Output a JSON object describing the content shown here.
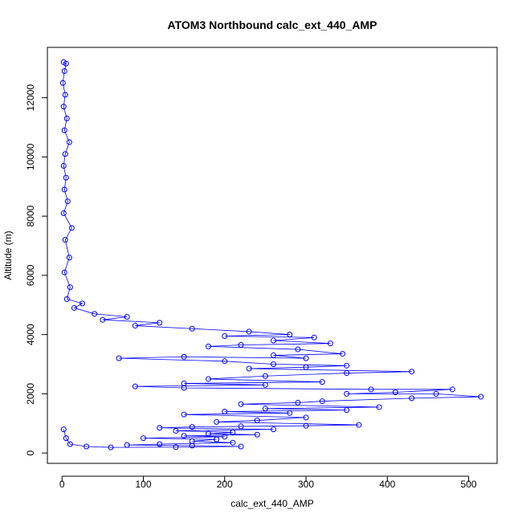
{
  "chart_data": {
    "type": "scatter",
    "title": "ATOM3 Northbound calc_ext_440_AMP",
    "xlabel": "calc_ext_440_AMP",
    "ylabel": "Altitude (m)",
    "xlim": [
      -18,
      535
    ],
    "ylim": [
      -350,
      13700
    ],
    "x_ticks": [
      0,
      100,
      200,
      300,
      400,
      500
    ],
    "x_tick_labels": [
      "0",
      "100",
      "200",
      "300",
      "400",
      "500"
    ],
    "y_ticks": [
      0,
      2000,
      4000,
      6000,
      8000,
      10000,
      12000
    ],
    "y_tick_labels": [
      "0",
      "2000",
      "4000",
      "6000",
      "8000",
      "10000",
      "12000"
    ],
    "grid": false,
    "legend": "none",
    "marker": "open-circle",
    "connected_by_lines": true,
    "color": "#0000ff",
    "series": [
      {
        "points": [
          [
            2,
            13200
          ],
          [
            5,
            13150
          ],
          [
            3,
            12900
          ],
          [
            1,
            12500
          ],
          [
            4,
            12100
          ],
          [
            2,
            11700
          ],
          [
            6,
            11300
          ],
          [
            3,
            10900
          ],
          [
            9,
            10500
          ],
          [
            4,
            10100
          ],
          [
            2,
            9700
          ],
          [
            5,
            9300
          ],
          [
            3,
            8900
          ],
          [
            7,
            8500
          ],
          [
            2,
            8100
          ],
          [
            12,
            7600
          ],
          [
            4,
            7200
          ],
          [
            9,
            6600
          ],
          [
            3,
            6100
          ],
          [
            10,
            5600
          ],
          [
            6,
            5200
          ],
          [
            25,
            5050
          ],
          [
            15,
            4900
          ],
          [
            40,
            4700
          ],
          [
            80,
            4600
          ],
          [
            50,
            4500
          ],
          [
            120,
            4400
          ],
          [
            90,
            4300
          ],
          [
            160,
            4200
          ],
          [
            230,
            4100
          ],
          [
            280,
            4000
          ],
          [
            200,
            3950
          ],
          [
            310,
            3900
          ],
          [
            260,
            3800
          ],
          [
            330,
            3700
          ],
          [
            220,
            3650
          ],
          [
            180,
            3600
          ],
          [
            290,
            3500
          ],
          [
            345,
            3350
          ],
          [
            260,
            3300
          ],
          [
            300,
            3200
          ],
          [
            150,
            3250
          ],
          [
            70,
            3200
          ],
          [
            200,
            3100
          ],
          [
            260,
            3000
          ],
          [
            350,
            2950
          ],
          [
            300,
            2900
          ],
          [
            230,
            2850
          ],
          [
            430,
            2750
          ],
          [
            350,
            2700
          ],
          [
            250,
            2600
          ],
          [
            180,
            2500
          ],
          [
            320,
            2400
          ],
          [
            150,
            2350
          ],
          [
            250,
            2300
          ],
          [
            90,
            2250
          ],
          [
            150,
            2200
          ],
          [
            380,
            2150
          ],
          [
            480,
            2150
          ],
          [
            410,
            2050
          ],
          [
            350,
            2000
          ],
          [
            460,
            2000
          ],
          [
            515,
            1900
          ],
          [
            430,
            1850
          ],
          [
            320,
            1750
          ],
          [
            290,
            1700
          ],
          [
            220,
            1650
          ],
          [
            390,
            1550
          ],
          [
            250,
            1500
          ],
          [
            350,
            1450
          ],
          [
            200,
            1400
          ],
          [
            280,
            1350
          ],
          [
            150,
            1300
          ],
          [
            300,
            1200
          ],
          [
            240,
            1100
          ],
          [
            190,
            1050
          ],
          [
            365,
            950
          ],
          [
            300,
            920
          ],
          [
            220,
            900
          ],
          [
            160,
            880
          ],
          [
            120,
            850
          ],
          [
            260,
            800
          ],
          [
            140,
            750
          ],
          [
            210,
            700
          ],
          [
            180,
            650
          ],
          [
            240,
            620
          ],
          [
            150,
            580
          ],
          [
            200,
            550
          ],
          [
            100,
            500
          ],
          [
            190,
            460
          ],
          [
            160,
            400
          ],
          [
            210,
            350
          ],
          [
            120,
            300
          ],
          [
            80,
            270
          ],
          [
            160,
            250
          ],
          [
            220,
            220
          ],
          [
            140,
            200
          ],
          [
            60,
            190
          ],
          [
            30,
            220
          ],
          [
            10,
            300
          ],
          [
            5,
            500
          ],
          [
            2,
            800
          ]
        ]
      }
    ]
  }
}
